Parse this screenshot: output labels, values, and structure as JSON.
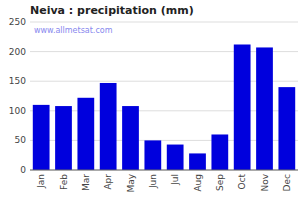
{
  "chart_data": {
    "type": "bar",
    "title": "Neiva : precipitation (mm)",
    "categories": [
      "Jan",
      "Feb",
      "Mar",
      "Apr",
      "May",
      "Jun",
      "Jul",
      "Aug",
      "Sep",
      "Oct",
      "Nov",
      "Dec"
    ],
    "values": [
      110,
      108,
      122,
      147,
      108,
      50,
      43,
      28,
      60,
      212,
      207,
      140
    ],
    "color": "#0000DD",
    "ylim": [
      0,
      250
    ],
    "yticks": [
      0,
      50,
      100,
      150,
      200,
      250
    ],
    "grid": true,
    "annotations": [
      "www.allmetsat.com"
    ]
  }
}
